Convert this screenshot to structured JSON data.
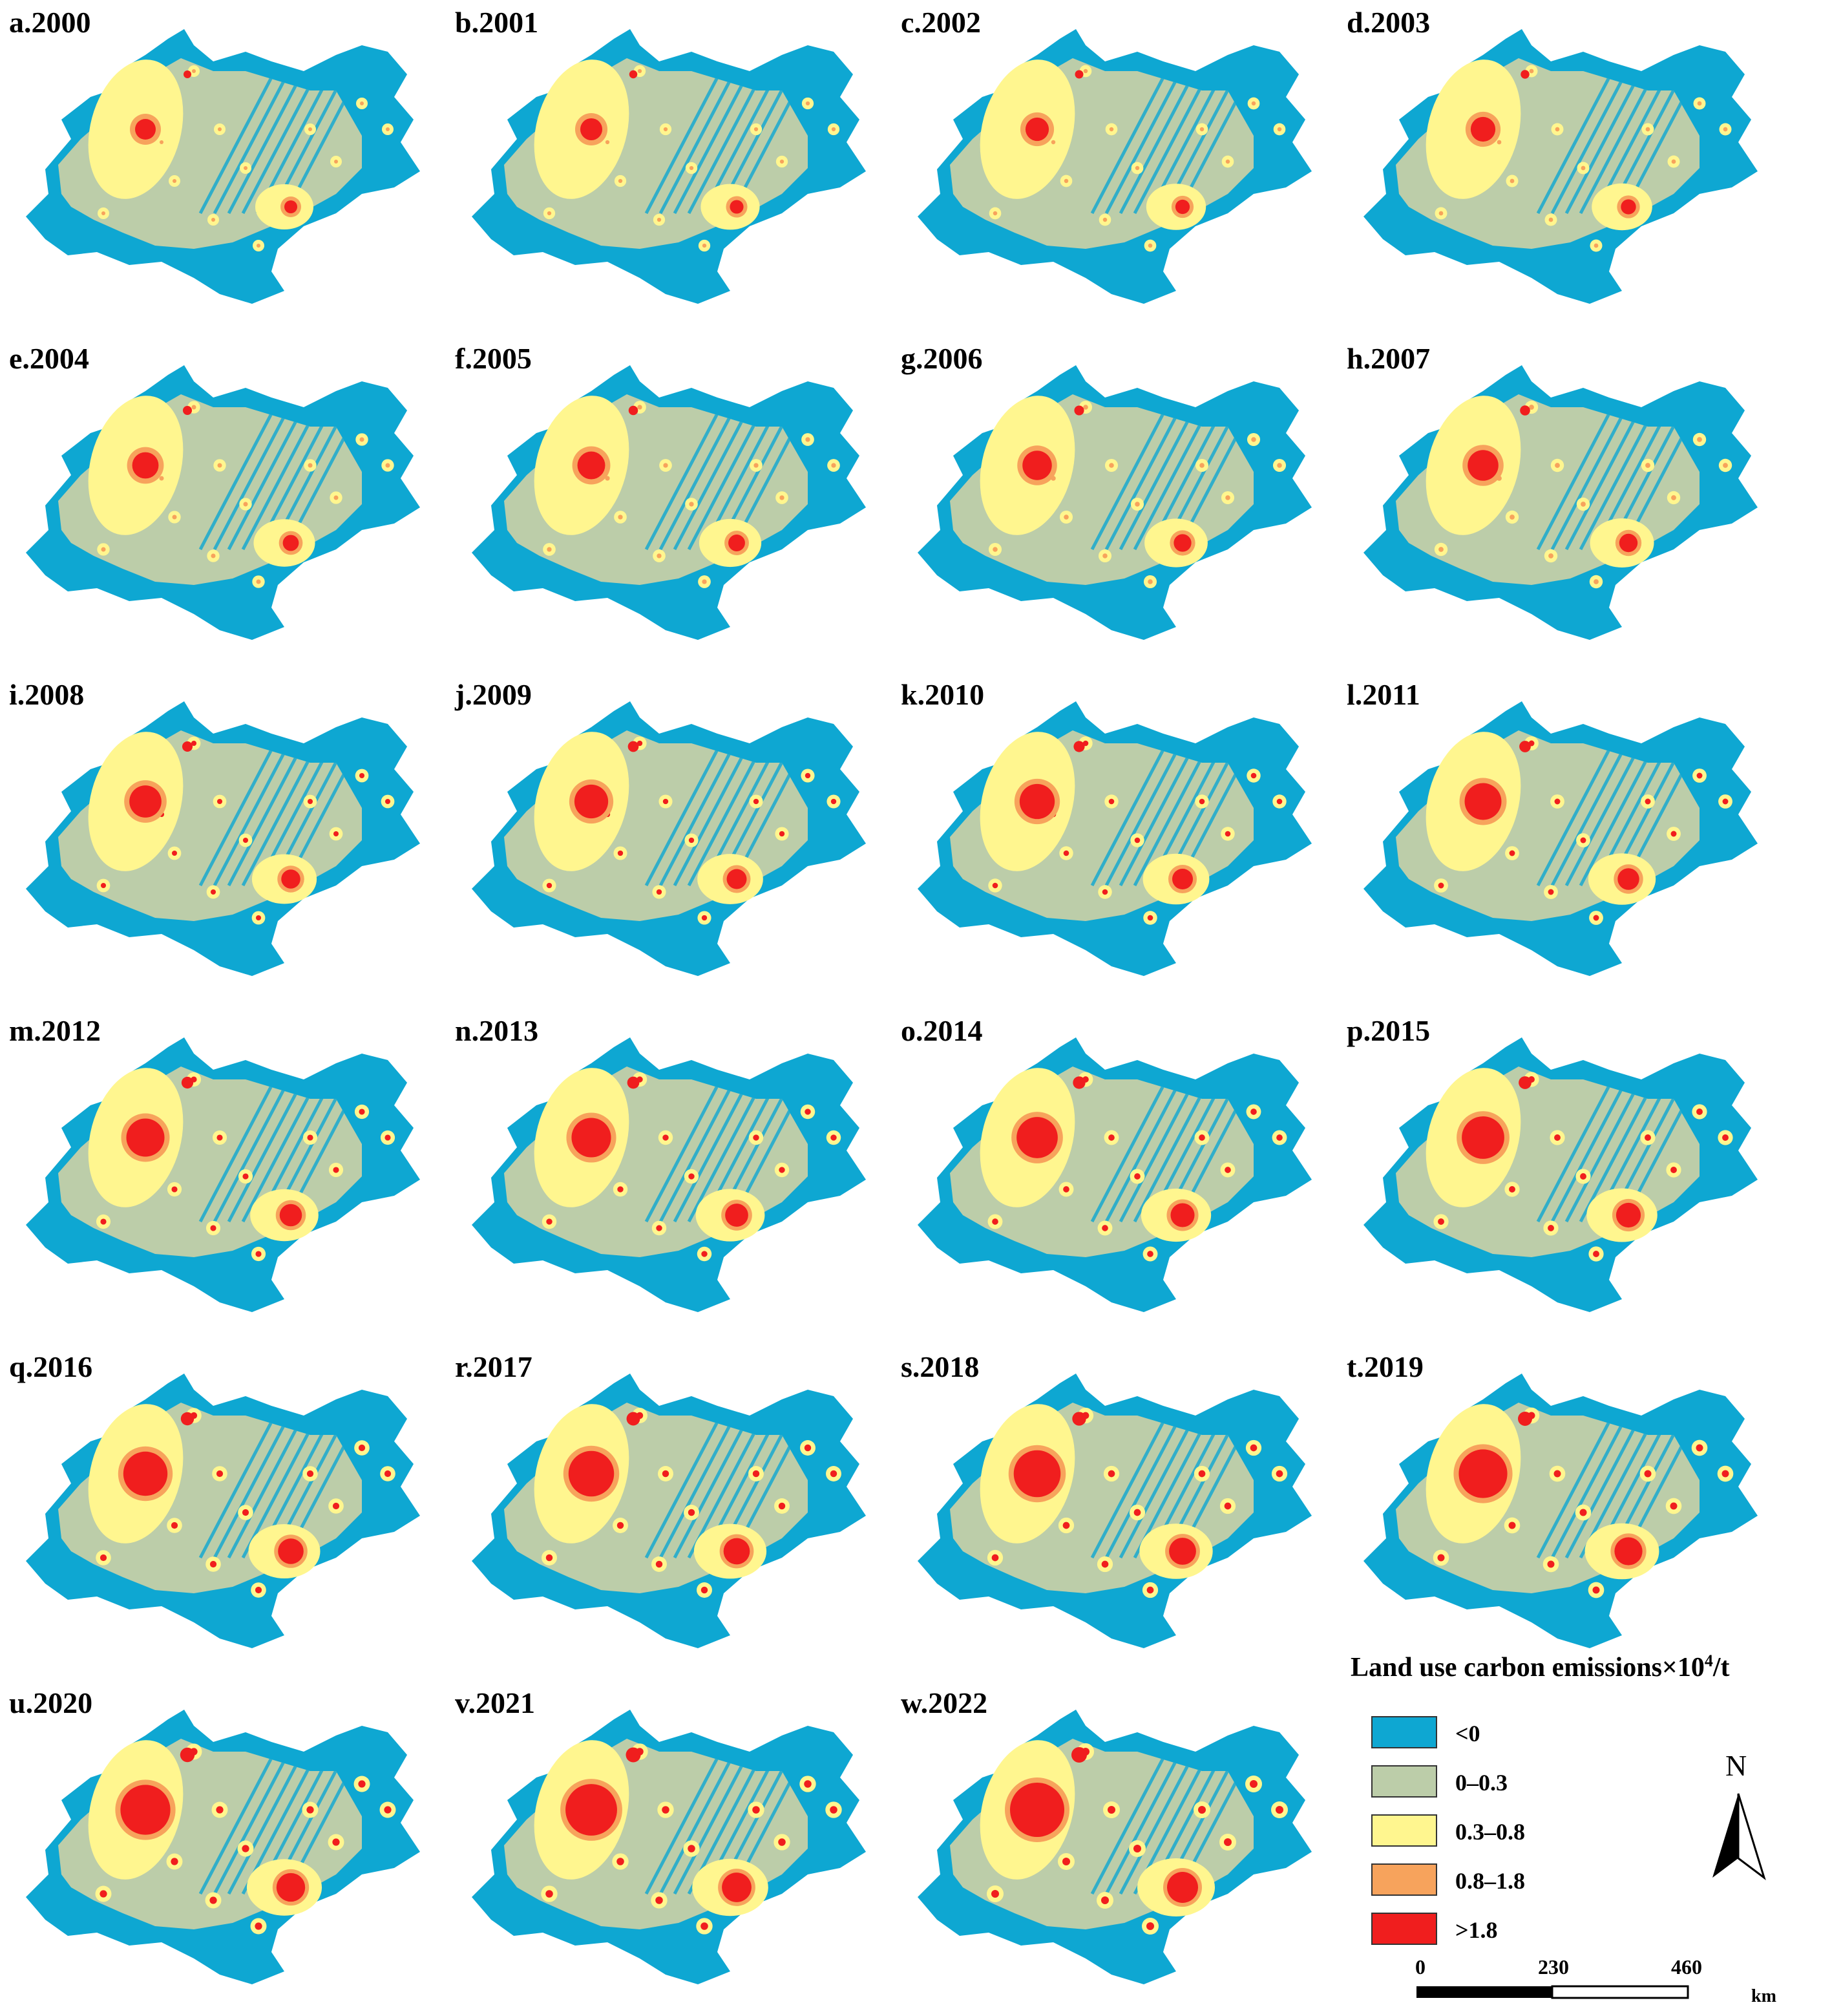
{
  "panels": [
    {
      "label": "a.2000",
      "urban": 0.0
    },
    {
      "label": "b.2001",
      "urban": 0.04
    },
    {
      "label": "c.2002",
      "urban": 0.08
    },
    {
      "label": "d.2003",
      "urban": 0.12
    },
    {
      "label": "e.2004",
      "urban": 0.17
    },
    {
      "label": "f.2005",
      "urban": 0.21
    },
    {
      "label": "g.2006",
      "urban": 0.26
    },
    {
      "label": "h.2007",
      "urban": 0.3
    },
    {
      "label": "i.2008",
      "urban": 0.34
    },
    {
      "label": "j.2009",
      "urban": 0.39
    },
    {
      "label": "k.2010",
      "urban": 0.43
    },
    {
      "label": "l.2011",
      "urban": 0.48
    },
    {
      "label": "m.2012",
      "urban": 0.52
    },
    {
      "label": "n.2013",
      "urban": 0.56
    },
    {
      "label": "o.2014",
      "urban": 0.61
    },
    {
      "label": "p.2015",
      "urban": 0.65
    },
    {
      "label": "q.2016",
      "urban": 0.7
    },
    {
      "label": "r.2017",
      "urban": 0.74
    },
    {
      "label": "s.2018",
      "urban": 0.78
    },
    {
      "label": "t.2019",
      "urban": 0.83
    },
    {
      "label": "u.2020",
      "urban": 0.87
    },
    {
      "label": "v.2021",
      "urban": 0.92
    },
    {
      "label": "w.2022",
      "urban": 1.0
    }
  ],
  "legend": {
    "title_main": "Land use carbon emissions×10",
    "title_sup": "4",
    "title_tail": "/t",
    "classes": [
      {
        "label": "<0",
        "color": "#0ea7d2"
      },
      {
        "label": "0–0.3",
        "color": "#bccda9"
      },
      {
        "label": "0.3–0.8",
        "color": "#fff68f"
      },
      {
        "label": "0.8–1.8",
        "color": "#f7a35c"
      },
      {
        "label": ">1.8",
        "color": "#f01e1e"
      }
    ]
  },
  "north_arrow": {
    "label": "N"
  },
  "scale_bar": {
    "ticks": [
      "0",
      "230",
      "460"
    ],
    "unit": "km"
  }
}
